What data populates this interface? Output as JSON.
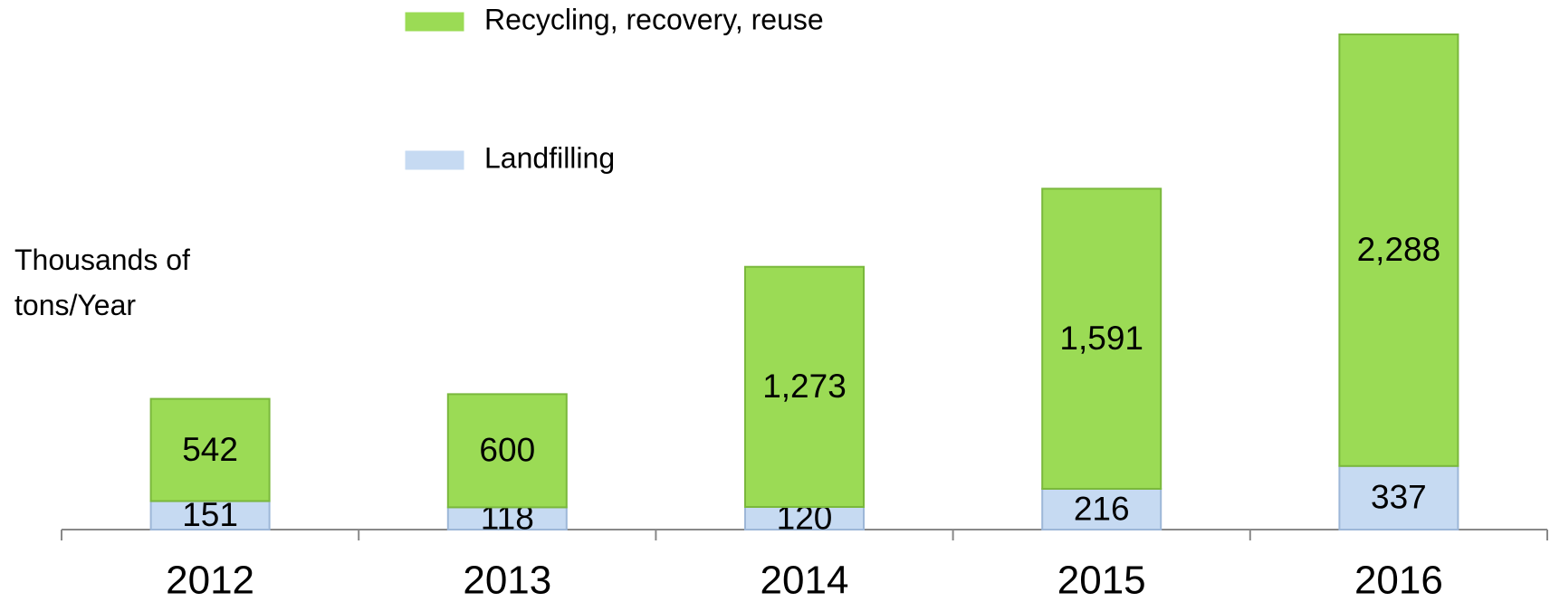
{
  "chart_data": {
    "type": "stacked_bar",
    "y_label": "Thousands of tons/Year",
    "categories": [
      "2012",
      "2013",
      "2014",
      "2015",
      "2016"
    ],
    "series": [
      {
        "name": "Landfilling",
        "color": "#c6daf2",
        "values": [
          151,
          118,
          120,
          216,
          337
        ],
        "value_labels": [
          "151",
          "118",
          "120",
          "216",
          "337"
        ]
      },
      {
        "name": "Recycling, recovery, reuse",
        "color": "#9bdb55",
        "values": [
          542,
          600,
          1273,
          1591,
          2288
        ],
        "value_labels": [
          "542",
          "600",
          "1,273",
          "1,591",
          "2,288"
        ]
      }
    ],
    "legend": "top"
  }
}
